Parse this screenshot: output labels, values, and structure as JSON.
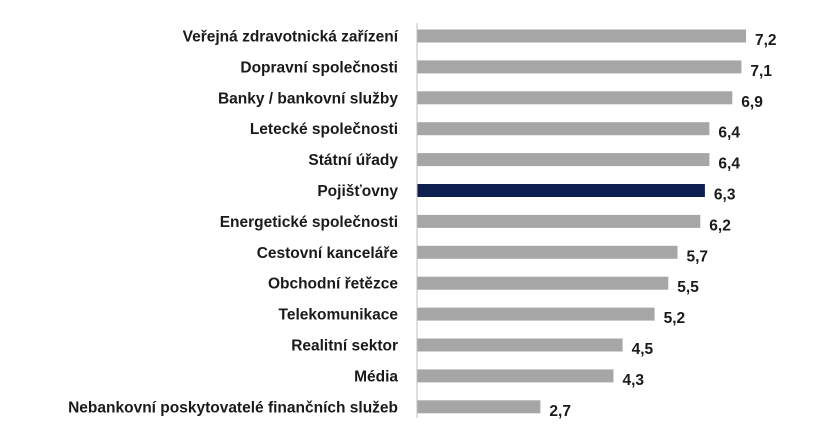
{
  "chart_data": {
    "type": "bar",
    "orientation": "horizontal",
    "categories": [
      "Veřejná zdravotnická zařízení",
      "Dopravní společnosti",
      "Banky / bankovní služby",
      "Letecké společnosti",
      "Státní úřady",
      "Pojišťovny",
      "Energetické společnosti",
      "Cestovní kanceláře",
      "Obchodní řetězce",
      "Telekomunikace",
      "Realitní sektor",
      "Média",
      "Nebankovní poskytovatelé finančních služeb"
    ],
    "values": [
      7.2,
      7.1,
      6.9,
      6.4,
      6.4,
      6.3,
      6.2,
      5.7,
      5.5,
      5.2,
      4.5,
      4.3,
      2.7
    ],
    "value_labels": [
      "7,2",
      "7,1",
      "6,9",
      "6,4",
      "6,4",
      "6,3",
      "6,2",
      "5,7",
      "5,5",
      "5,2",
      "4,5",
      "4,3",
      "2,7"
    ],
    "highlight_category": "Pojišťovny",
    "xlim": [
      0,
      7.2
    ],
    "title": "",
    "xlabel": "",
    "ylabel": "",
    "grid": false,
    "legend": "none",
    "colors": {
      "bar": "#a6a6a6",
      "highlight": "#0d1f4f",
      "text": "#1a1a1a",
      "axis": "#bfbfbf"
    }
  }
}
